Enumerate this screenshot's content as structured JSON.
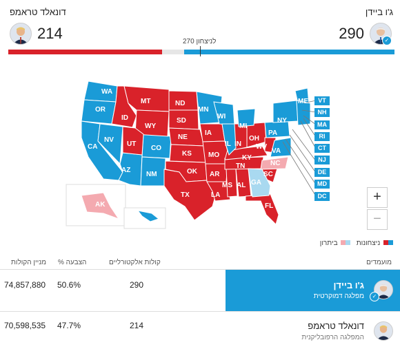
{
  "header": {
    "biden": {
      "name": "ג'ו ביידן",
      "electoral_votes": "290"
    },
    "trump": {
      "name": "דונאלד טראמפ",
      "electoral_votes": "214"
    },
    "threshold_label": "270 לניצחון"
  },
  "colors": {
    "dem": "#1a9bd7",
    "rep": "#d9222a",
    "dem_light": "#a9d9f0",
    "rep_light": "#f4aab0",
    "undecided": "#e6e6e6"
  },
  "map": {
    "state_labels": [
      "WA",
      "OR",
      "CA",
      "NV",
      "ID",
      "MT",
      "WY",
      "UT",
      "AZ",
      "CO",
      "NM",
      "ND",
      "SD",
      "NE",
      "KS",
      "OK",
      "TX",
      "MN",
      "IA",
      "MO",
      "AR",
      "LA",
      "WI",
      "IL",
      "MI",
      "IN",
      "OH",
      "KY",
      "TN",
      "MS",
      "AL",
      "GA",
      "FL",
      "SC",
      "NC",
      "VA",
      "WV",
      "PA",
      "NY",
      "ME",
      "AK",
      "HI"
    ],
    "northeast_boxes": [
      "VT",
      "NH",
      "MA",
      "RI",
      "CT",
      "NJ",
      "DE",
      "MD",
      "DC"
    ]
  },
  "zoom": {
    "in": "+",
    "out": "−"
  },
  "legend": {
    "wins": "ניצחונות",
    "leading": "ביתרון"
  },
  "table": {
    "headers": {
      "candidates": "מועמדים",
      "electoral": "קולות אלקטורליים",
      "pct": "% הצבעה",
      "votes": "מניין הקולות"
    },
    "rows": [
      {
        "name": "ג'ו ביידן",
        "party": "מפלגה דמוקרטית",
        "electoral": "290",
        "pct": "50.6%",
        "votes": "74,857,880"
      },
      {
        "name": "דונאלד טראמפ",
        "party": "המפלגה הרפובליקנית",
        "electoral": "214",
        "pct": "47.7%",
        "votes": "70,598,535"
      }
    ]
  }
}
